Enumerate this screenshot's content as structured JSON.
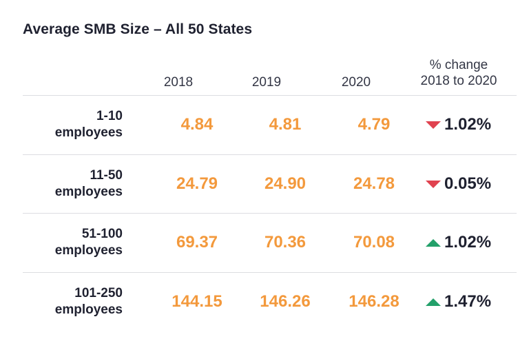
{
  "chart_data": {
    "type": "table",
    "title": "Average SMB Size – All 50 States",
    "columns": [
      "2018",
      "2019",
      "2020"
    ],
    "change_header": [
      "% change",
      "2018 to 2020"
    ],
    "rows": [
      {
        "label_line1": "1-10",
        "label_line2": "employees",
        "values": [
          "4.84",
          "4.81",
          "4.79"
        ],
        "change": "1.02%",
        "direction": "down"
      },
      {
        "label_line1": "11-50",
        "label_line2": "employees",
        "values": [
          "24.79",
          "24.90",
          "24.78"
        ],
        "change": "0.05%",
        "direction": "down"
      },
      {
        "label_line1": "51-100",
        "label_line2": "employees",
        "values": [
          "69.37",
          "70.36",
          "70.08"
        ],
        "change": "1.02%",
        "direction": "up"
      },
      {
        "label_line1": "101-250",
        "label_line2": "employees",
        "values": [
          "144.15",
          "146.26",
          "146.28"
        ],
        "change": "1.47%",
        "direction": "up"
      }
    ],
    "colors": {
      "value": "#f3993c",
      "down": "#e0424f",
      "up": "#23a06a",
      "text": "#1f2130"
    }
  }
}
